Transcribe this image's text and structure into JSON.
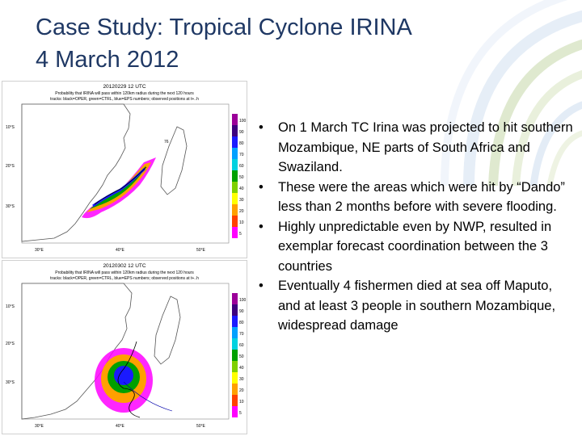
{
  "slide": {
    "title_line1": "Case Study:  Tropical Cyclone IRINA",
    "title_line2": "4 March 2012"
  },
  "maps": [
    {
      "date_label": "20120229 12 UTC",
      "caption_line1": "Probability that IRINA will pass within 120km radius during the next 120 hours",
      "caption_line2": "tracks: black=OPER, green=CTRL, blue=EPS numbers; observed positions at t+..h",
      "lat_labels": [
        "10°S",
        "20°S",
        "30°S"
      ],
      "lon_labels": [
        "30°E",
        "40°E",
        "50°E"
      ],
      "legend": [
        "100",
        "90",
        "80",
        "70",
        "60",
        "50",
        "40",
        "30",
        "20",
        "10",
        "5"
      ]
    },
    {
      "date_label": "20120302 12 UTC",
      "caption_line1": "Probability that IRINA will pass within 120km radius during the next 120 hours",
      "caption_line2": "tracks: black=OPER, green=CTRL, blue=EPS numbers; observed positions at t+..h",
      "lat_labels": [
        "10°S",
        "20°S",
        "30°S"
      ],
      "lon_labels": [
        "30°E",
        "40°E",
        "50°E"
      ],
      "legend": [
        "100",
        "90",
        "80",
        "70",
        "60",
        "50",
        "40",
        "30",
        "20",
        "10",
        "5"
      ]
    }
  ],
  "bullets": [
    {
      "text": "On 1 March TC Irina was projected to hit southern Mozambique, NE parts of South Africa and Swaziland."
    },
    {
      "text": "These were the areas which were hit by “Dando” less than 2 months before with severe flooding."
    },
    {
      "text": "Highly unpredictable even by NWP, resulted in exemplar forecast coordination between the 3 countries"
    },
    {
      "text": "Eventually 4 fishermen died at sea off Maputo, and at least 3 people in southern Mozambique, widespread damage"
    }
  ],
  "bullet_symbol": "•",
  "colors": {
    "title": "#1f3864",
    "land": "#ffffff",
    "sea": "#ffffff",
    "legend": [
      "#9b0099",
      "#3d007f",
      "#1a1aff",
      "#00a0ff",
      "#00d2e0",
      "#00a000",
      "#7fd000",
      "#ffff00",
      "#ffa000",
      "#ff4000",
      "#ff00ff"
    ]
  }
}
